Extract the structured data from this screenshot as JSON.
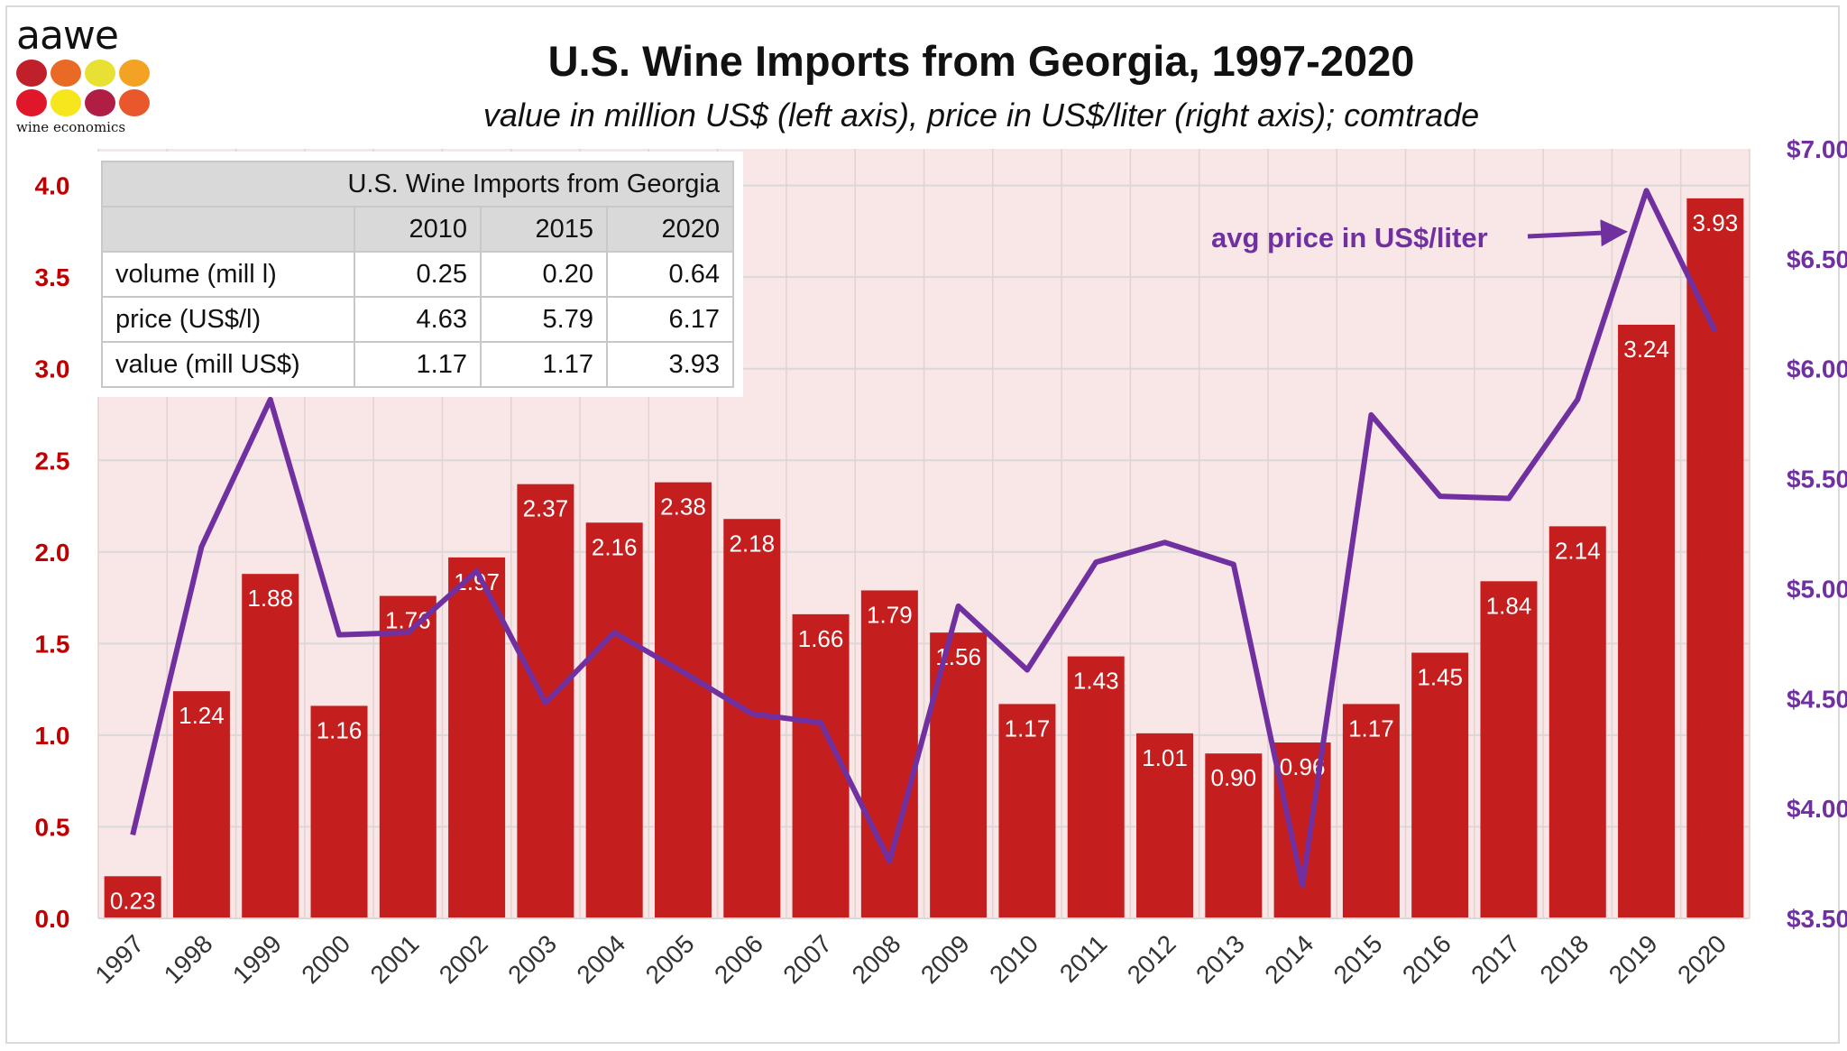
{
  "logo": {
    "word": "aawe",
    "tagline": "wine economics",
    "dot_colors": [
      "#c0202a",
      "#e86a24",
      "#e8e032",
      "#f4a224",
      "#e0162a",
      "#f8e61c",
      "#b01e46",
      "#e8582c"
    ]
  },
  "colors": {
    "bar": "#c41e1e",
    "line": "#7030a0",
    "left_axis": "#c00000",
    "right_axis": "#7030a0",
    "plot_bg": "#f9e7e7"
  },
  "chart_data": {
    "type": "bar+line",
    "title": "U.S. Wine Imports from Georgia, 1997-2020",
    "subtitle": "value in million US$ (left axis), price in US$/liter (right axis); comtrade",
    "categories": [
      "1997",
      "1998",
      "1999",
      "2000",
      "2001",
      "2002",
      "2003",
      "2004",
      "2005",
      "2006",
      "2007",
      "2008",
      "2009",
      "2010",
      "2011",
      "2012",
      "2013",
      "2014",
      "2015",
      "2016",
      "2017",
      "2018",
      "2019",
      "2020"
    ],
    "series": [
      {
        "type": "bar",
        "axis": "left",
        "values": [
          0.23,
          1.24,
          1.88,
          1.16,
          1.76,
          1.97,
          2.37,
          2.16,
          2.38,
          2.18,
          1.66,
          1.79,
          1.56,
          1.17,
          1.43,
          1.01,
          0.9,
          0.96,
          1.17,
          1.45,
          1.84,
          2.14,
          3.24,
          3.93
        ],
        "labels": [
          "0.23",
          "1.24",
          "1.88",
          "1.16",
          "1.76",
          "1.97",
          "2.37",
          "2.16",
          "2.38",
          "2.18",
          "1.66",
          "1.79",
          "1.56",
          "1.17",
          "1.43",
          "1.01",
          "0.90",
          "0.96",
          "1.17",
          "1.45",
          "1.84",
          "2.14",
          "3.24",
          "3.93"
        ]
      },
      {
        "type": "line",
        "axis": "right",
        "name": "avg price in US$/liter",
        "values": [
          3.88,
          5.19,
          5.86,
          4.79,
          4.8,
          5.08,
          4.48,
          4.8,
          4.62,
          4.43,
          4.39,
          3.76,
          4.92,
          4.63,
          5.12,
          5.21,
          5.11,
          3.65,
          5.79,
          5.42,
          5.41,
          5.86,
          6.81,
          6.17
        ]
      }
    ],
    "left_axis": {
      "ylim": [
        0,
        4.2
      ],
      "ticks": [
        "0.0",
        "0.5",
        "1.0",
        "1.5",
        "2.0",
        "2.5",
        "3.0",
        "3.5",
        "4.0"
      ],
      "tick_values": [
        0,
        0.5,
        1,
        1.5,
        2,
        2.5,
        3,
        3.5,
        4
      ]
    },
    "right_axis": {
      "ylim": [
        3.5,
        7.0
      ],
      "ticks": [
        "$3.50",
        "$4.00",
        "$4.50",
        "$5.00",
        "$5.50",
        "$6.00",
        "$6.50",
        "$7.00"
      ],
      "tick_values": [
        3.5,
        4,
        4.5,
        5,
        5.5,
        6,
        6.5,
        7
      ]
    },
    "grid": true,
    "annotation": "avg price in US$/liter"
  },
  "table": {
    "title": "U.S. Wine Imports from Georgia",
    "years": [
      "2010",
      "2015",
      "2020"
    ],
    "rows": [
      {
        "label": "volume (mill l)",
        "values": [
          "0.25",
          "0.20",
          "0.64"
        ]
      },
      {
        "label": "price (US$/l)",
        "values": [
          "4.63",
          "5.79",
          "6.17"
        ]
      },
      {
        "label": "value (mill US$)",
        "values": [
          "1.17",
          "1.17",
          "3.93"
        ]
      }
    ]
  }
}
